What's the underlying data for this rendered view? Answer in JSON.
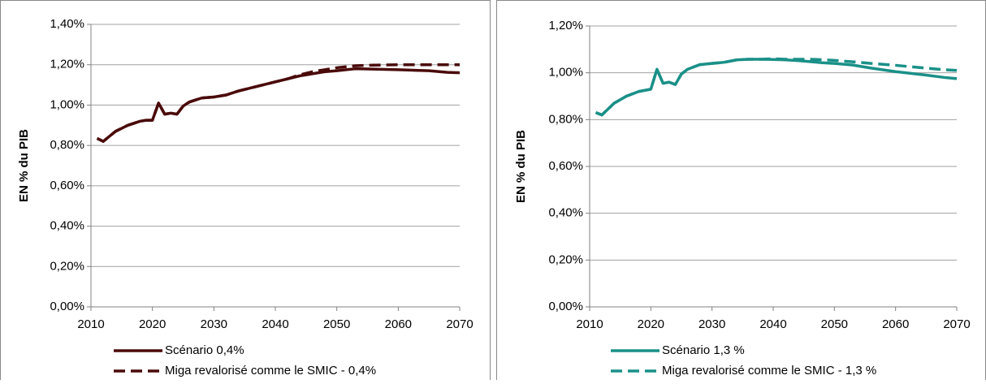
{
  "chart_data": [
    {
      "type": "line",
      "y_label": "EN % du PIB",
      "x": [
        2011,
        2012,
        2013,
        2014,
        2015,
        2016,
        2017,
        2018,
        2019,
        2020,
        2021,
        2022,
        2023,
        2024,
        2025,
        2026,
        2027,
        2028,
        2030,
        2032,
        2034,
        2036,
        2038,
        2040,
        2042,
        2044,
        2046,
        2048,
        2050,
        2053,
        2056,
        2060,
        2065,
        2068,
        2070
      ],
      "xlim": [
        2010,
        2070
      ],
      "xticks": [
        2010,
        2020,
        2030,
        2040,
        2050,
        2060,
        2070
      ],
      "ylim": [
        0,
        1.4
      ],
      "yticks": [
        {
          "value": 0,
          "label": "0,00%"
        },
        {
          "value": 0.2,
          "label": "0,20%"
        },
        {
          "value": 0.4,
          "label": "0,40%"
        },
        {
          "value": 0.6,
          "label": "0,60%"
        },
        {
          "value": 0.8,
          "label": "0,80%"
        },
        {
          "value": 1.0,
          "label": "1,00%"
        },
        {
          "value": 1.2,
          "label": "1,20%"
        },
        {
          "value": 1.4,
          "label": "1,40%"
        }
      ],
      "grid": true,
      "series": [
        {
          "name": "Scénario 0,4%",
          "color": "#4a0a0a",
          "dash": false,
          "values": [
            0.835,
            0.82,
            0.845,
            0.87,
            0.885,
            0.9,
            0.91,
            0.92,
            0.925,
            0.925,
            1.01,
            0.955,
            0.96,
            0.955,
            0.995,
            1.015,
            1.025,
            1.035,
            1.04,
            1.05,
            1.07,
            1.085,
            1.1,
            1.115,
            1.13,
            1.145,
            1.155,
            1.165,
            1.17,
            1.18,
            1.178,
            1.175,
            1.17,
            1.162,
            1.16
          ]
        },
        {
          "name": "Miga revalorisé comme le SMIC - 0,4%",
          "color": "#4a0a0a",
          "dash": true,
          "values": [
            0.835,
            0.82,
            0.845,
            0.87,
            0.885,
            0.9,
            0.91,
            0.92,
            0.925,
            0.925,
            1.01,
            0.955,
            0.96,
            0.955,
            0.995,
            1.015,
            1.025,
            1.035,
            1.04,
            1.05,
            1.07,
            1.085,
            1.1,
            1.115,
            1.13,
            1.15,
            1.165,
            1.175,
            1.185,
            1.195,
            1.198,
            1.2,
            1.2,
            1.2,
            1.2
          ]
        }
      ]
    },
    {
      "type": "line",
      "y_label": "EN % du PIB",
      "x": [
        2011,
        2012,
        2013,
        2014,
        2015,
        2016,
        2017,
        2018,
        2019,
        2020,
        2021,
        2022,
        2023,
        2024,
        2025,
        2026,
        2027,
        2028,
        2030,
        2032,
        2034,
        2036,
        2038,
        2040,
        2042,
        2044,
        2046,
        2048,
        2050,
        2053,
        2056,
        2060,
        2065,
        2068,
        2070
      ],
      "xlim": [
        2010,
        2070
      ],
      "xticks": [
        2010,
        2020,
        2030,
        2040,
        2050,
        2060,
        2070
      ],
      "ylim": [
        0,
        1.2
      ],
      "yticks": [
        {
          "value": 0,
          "label": "0,00%"
        },
        {
          "value": 0.2,
          "label": "0,20%"
        },
        {
          "value": 0.4,
          "label": "0,40%"
        },
        {
          "value": 0.6,
          "label": "0,60%"
        },
        {
          "value": 0.8,
          "label": "0,80%"
        },
        {
          "value": 1.0,
          "label": "1,00%"
        },
        {
          "value": 1.2,
          "label": "1,20%"
        }
      ],
      "grid": true,
      "series": [
        {
          "name": "Scénario 1,3 %",
          "color": "#1a9088",
          "dash": false,
          "values": [
            0.83,
            0.82,
            0.845,
            0.87,
            0.885,
            0.9,
            0.91,
            0.92,
            0.925,
            0.93,
            1.015,
            0.955,
            0.96,
            0.95,
            0.995,
            1.015,
            1.025,
            1.035,
            1.04,
            1.045,
            1.055,
            1.058,
            1.058,
            1.057,
            1.055,
            1.052,
            1.048,
            1.043,
            1.04,
            1.033,
            1.02,
            1.005,
            0.99,
            0.98,
            0.975
          ]
        },
        {
          "name": "Miga revalorisé comme le SMIC - 1,3 %",
          "color": "#1a9088",
          "dash": true,
          "values": [
            0.83,
            0.82,
            0.845,
            0.87,
            0.885,
            0.9,
            0.91,
            0.92,
            0.925,
            0.93,
            1.015,
            0.955,
            0.96,
            0.95,
            0.995,
            1.015,
            1.025,
            1.035,
            1.04,
            1.045,
            1.055,
            1.058,
            1.058,
            1.06,
            1.058,
            1.058,
            1.058,
            1.056,
            1.053,
            1.047,
            1.04,
            1.032,
            1.02,
            1.013,
            1.01
          ]
        }
      ]
    }
  ]
}
